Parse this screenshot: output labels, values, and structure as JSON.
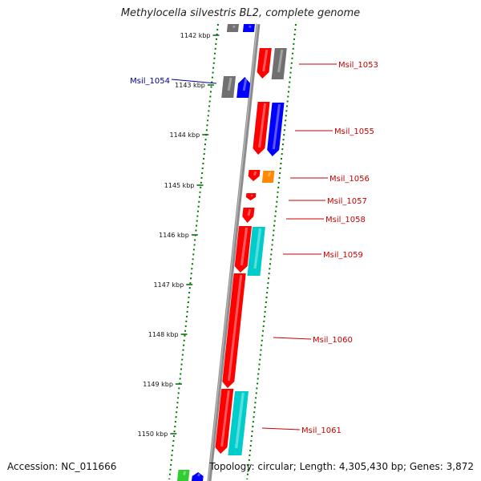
{
  "title": "Methylocella silvestris BL2, complete genome",
  "footer": {
    "accession": "Accession: NC_011666",
    "topology": "Topology: circular; Length: 4,305,430 bp; Genes: 3,872"
  },
  "colors": {
    "backbone": "#8c8c8c",
    "cds_forward": "#ff0000",
    "cds_reverse": "#0000ff",
    "orf_gray": "#707070",
    "orf_cyan": "#00cccc",
    "orf_orange": "#ff8800",
    "orf_green": "#33cc33",
    "label_forward": "#cc0000",
    "label_reverse": "#000099",
    "dots": "#007700"
  },
  "kbp_ticks": [
    "1142 kbp",
    "1143 kbp",
    "1144 kbp",
    "1145 kbp",
    "1146 kbp",
    "1147 kbp",
    "1148 kbp",
    "1149 kbp",
    "1150 kbp"
  ],
  "gene_labels": [
    {
      "text": "Msil_1053",
      "strand": "forward"
    },
    {
      "text": "Msil_1054",
      "strand": "reverse"
    },
    {
      "text": "Msil_1055",
      "strand": "forward"
    },
    {
      "text": "Msil_1056",
      "strand": "forward"
    },
    {
      "text": "Msil_1057",
      "strand": "forward"
    },
    {
      "text": "Msil_1058",
      "strand": "forward"
    },
    {
      "text": "Msil_1059",
      "strand": "forward"
    },
    {
      "text": "Msil_1060",
      "strand": "forward"
    },
    {
      "text": "Msil_1061",
      "strand": "forward"
    }
  ]
}
